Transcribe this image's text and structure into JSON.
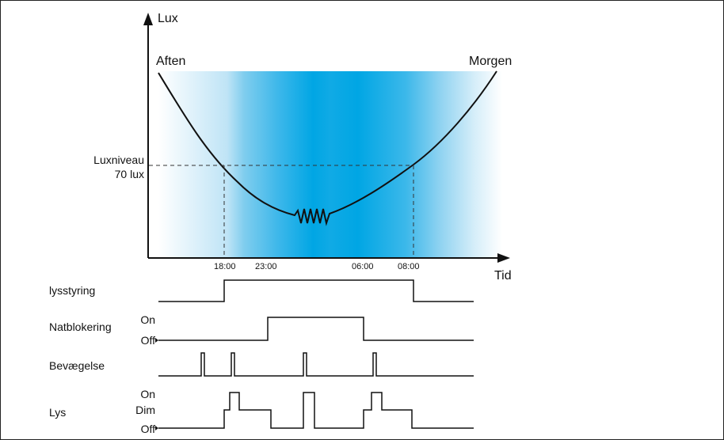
{
  "axis": {
    "y_label": "Lux",
    "x_label": "Tid",
    "evening_label": "Aften",
    "morning_label": "Morgen",
    "lux_level_line1": "Luxniveau",
    "lux_level_line2": "70 lux",
    "time_ticks": [
      "18:00",
      "23:00",
      "06:00",
      "08:00"
    ]
  },
  "rows": [
    {
      "id": "lysstyring",
      "label": "lysstyring",
      "levels": []
    },
    {
      "id": "natblokering",
      "label": "Natblokering",
      "levels": [
        "On",
        "Off"
      ]
    },
    {
      "id": "bevaegelse",
      "label": "Bevægelse",
      "levels": []
    },
    {
      "id": "lys",
      "label": "Lys",
      "levels": [
        "On",
        "Dim",
        "Off"
      ]
    }
  ],
  "colors": {
    "night_blue": "#00a6e4",
    "line": "#111111"
  }
}
